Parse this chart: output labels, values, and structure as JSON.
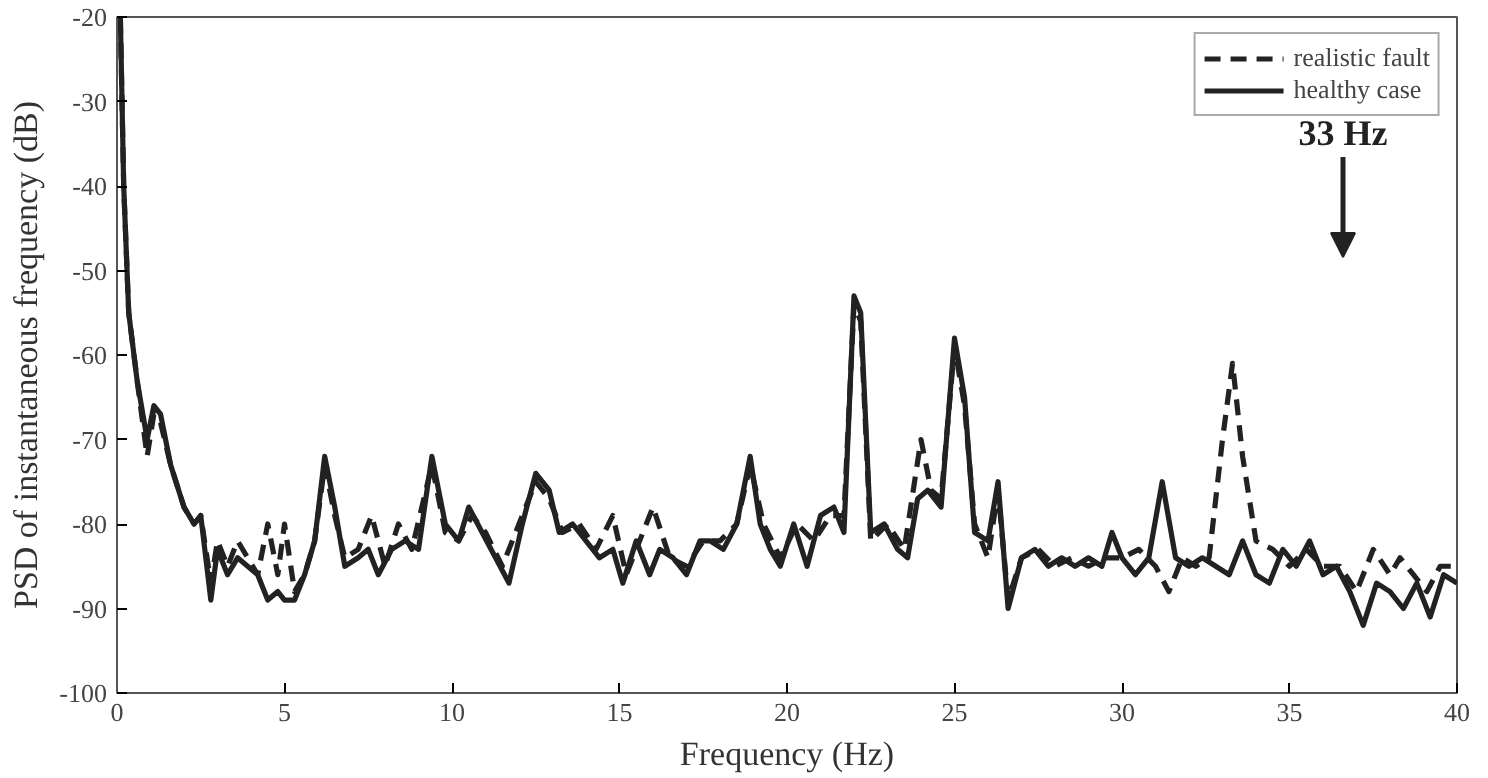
{
  "chart_data": {
    "type": "line",
    "xlabel": "Frequency (Hz)",
    "ylabel": "PSD of instantaneous frequency (dB)",
    "xlim": [
      0,
      40
    ],
    "ylim": [
      -100,
      -20
    ],
    "xticks": [
      0,
      5,
      10,
      15,
      20,
      25,
      30,
      35,
      40
    ],
    "yticks": [
      -100,
      -90,
      -80,
      -70,
      -60,
      -50,
      -40,
      -30,
      -20
    ],
    "grid": false,
    "legend": "top right",
    "marker": "none",
    "annotations": [
      "33 Hz"
    ],
    "series": [
      {
        "name": "realistic fault",
        "color": "#222222",
        "line_style": "dashed",
        "x": [
          0.1,
          0.2,
          0.35,
          0.6,
          0.9,
          1.1,
          1.3,
          1.6,
          2.0,
          2.3,
          2.5,
          2.8,
          3.0,
          3.3,
          3.6,
          3.9,
          4.2,
          4.5,
          4.8,
          5.0,
          5.3,
          5.6,
          5.9,
          6.2,
          6.5,
          6.8,
          7.2,
          7.6,
          8.0,
          8.4,
          8.8,
          9.4,
          9.8,
          10.2,
          10.6,
          11.0,
          11.5,
          12.0,
          12.5,
          12.9,
          13.3,
          13.8,
          14.3,
          14.8,
          15.2,
          15.6,
          16.0,
          16.5,
          17.0,
          17.5,
          18.0,
          18.5,
          18.9,
          19.3,
          19.8,
          20.3,
          20.8,
          21.3,
          21.7,
          22.0,
          22.2,
          22.5,
          23.0,
          23.5,
          24.0,
          24.3,
          24.6,
          25.0,
          25.3,
          25.6,
          26.0,
          26.3,
          26.6,
          27.0,
          27.5,
          28.0,
          28.5,
          29.0,
          29.5,
          30.0,
          30.5,
          31.0,
          31.4,
          31.8,
          32.2,
          32.6,
          33.0,
          33.3,
          33.6,
          34.0,
          34.5,
          35.0,
          35.5,
          36.0,
          36.5,
          37.0,
          37.5,
          38.0,
          38.3,
          38.7,
          39.1,
          39.5,
          40.0
        ],
        "values": [
          -20,
          -40,
          -55,
          -63,
          -72,
          -67,
          -68,
          -73,
          -78,
          -80,
          -79,
          -87,
          -82,
          -85,
          -82,
          -84,
          -86,
          -80,
          -86,
          -80,
          -88,
          -86,
          -82,
          -73,
          -79,
          -84,
          -83,
          -79,
          -85,
          -80,
          -83,
          -73,
          -81,
          -82,
          -79,
          -81,
          -85,
          -80,
          -75,
          -77,
          -81,
          -80,
          -83,
          -79,
          -86,
          -82,
          -78,
          -84,
          -85,
          -82,
          -82,
          -80,
          -73,
          -80,
          -84,
          -80,
          -82,
          -79,
          -79,
          -54,
          -56,
          -82,
          -80,
          -83,
          -70,
          -76,
          -77,
          -59,
          -66,
          -80,
          -84,
          -76,
          -89,
          -84,
          -83,
          -85,
          -84,
          -85,
          -84,
          -84,
          -83,
          -85,
          -88,
          -84,
          -85,
          -84,
          -70,
          -61,
          -72,
          -82,
          -83,
          -85,
          -83,
          -85,
          -85,
          -88,
          -83,
          -86,
          -84,
          -86,
          -88,
          -85,
          -85
        ]
      },
      {
        "name": "healthy case",
        "color": "#222222",
        "line_style": "solid",
        "x": [
          0.1,
          0.2,
          0.35,
          0.6,
          0.9,
          1.1,
          1.3,
          1.6,
          2.0,
          2.3,
          2.5,
          2.8,
          3.0,
          3.3,
          3.6,
          3.9,
          4.2,
          4.5,
          4.8,
          5.0,
          5.3,
          5.6,
          5.9,
          6.2,
          6.5,
          6.8,
          7.2,
          7.5,
          7.8,
          8.2,
          8.6,
          9.0,
          9.4,
          9.8,
          10.2,
          10.5,
          10.9,
          11.3,
          11.7,
          12.1,
          12.5,
          12.9,
          13.2,
          13.6,
          14.0,
          14.4,
          14.8,
          15.1,
          15.5,
          15.9,
          16.2,
          16.6,
          17.0,
          17.4,
          17.7,
          18.1,
          18.5,
          18.9,
          19.2,
          19.5,
          19.8,
          20.2,
          20.6,
          21.0,
          21.4,
          21.7,
          22.0,
          22.2,
          22.5,
          22.9,
          23.3,
          23.6,
          23.9,
          24.2,
          24.6,
          25.0,
          25.3,
          25.6,
          26.0,
          26.3,
          26.6,
          27.0,
          27.4,
          27.8,
          28.2,
          28.6,
          29.0,
          29.4,
          29.7,
          30.0,
          30.4,
          30.8,
          31.2,
          31.6,
          32.0,
          32.4,
          32.8,
          33.2,
          33.6,
          34.0,
          34.4,
          34.8,
          35.2,
          35.6,
          36.0,
          36.4,
          36.8,
          37.2,
          37.6,
          38.0,
          38.4,
          38.8,
          39.2,
          39.6,
          40.0
        ],
        "values": [
          -20,
          -40,
          -55,
          -63,
          -70,
          -66,
          -67,
          -73,
          -78,
          -80,
          -79,
          -89,
          -83,
          -86,
          -84,
          -85,
          -86,
          -89,
          -88,
          -89,
          -89,
          -86,
          -82,
          -72,
          -78,
          -85,
          -84,
          -83,
          -86,
          -83,
          -82,
          -83,
          -72,
          -80,
          -82,
          -78,
          -81,
          -84,
          -87,
          -80,
          -74,
          -76,
          -81,
          -80,
          -82,
          -84,
          -83,
          -87,
          -82,
          -86,
          -83,
          -84,
          -86,
          -82,
          -82,
          -83,
          -80,
          -72,
          -80,
          -83,
          -85,
          -80,
          -85,
          -79,
          -78,
          -81,
          -53,
          -55,
          -81,
          -80,
          -83,
          -84,
          -77,
          -76,
          -78,
          -58,
          -65,
          -81,
          -82,
          -75,
          -90,
          -84,
          -83,
          -85,
          -84,
          -85,
          -84,
          -85,
          -81,
          -84,
          -86,
          -84,
          -75,
          -84,
          -85,
          -84,
          -85,
          -86,
          -82,
          -86,
          -87,
          -83,
          -85,
          -82,
          -86,
          -85,
          -88,
          -92,
          -87,
          -88,
          -90,
          -87,
          -91,
          -86,
          -87
        ]
      }
    ]
  }
}
